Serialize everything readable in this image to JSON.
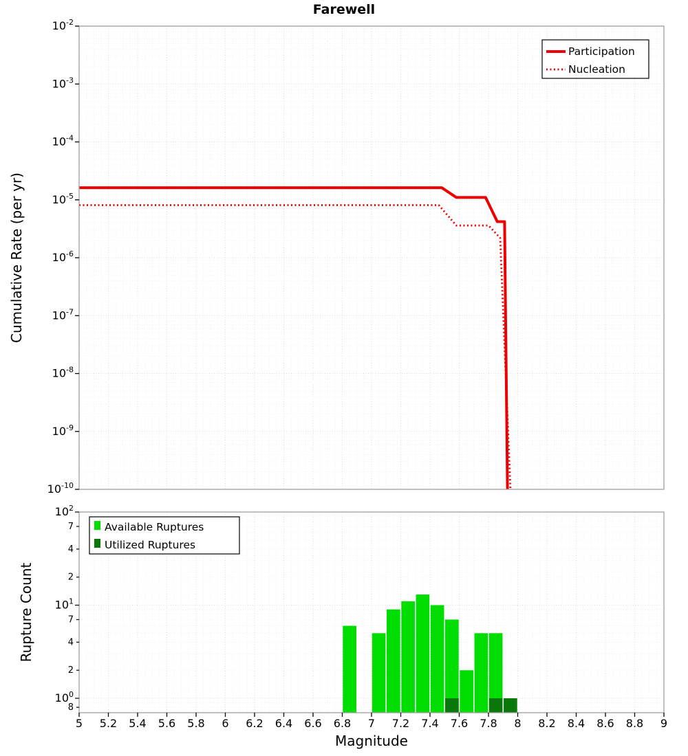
{
  "title": "Farewell",
  "axes": {
    "x_label": "Magnitude",
    "top_y_label": "Cumulative Rate (per yr)",
    "bottom_y_label": "Rupture Count"
  },
  "colors": {
    "red": "#ee0000",
    "green": "#00dd00",
    "dark_green": "#0a770a",
    "grid_major": "#d9d9d9",
    "grid_minor": "#f0f0f0",
    "frame": "#9e9e9e",
    "tick": "#000000"
  },
  "chart_data": [
    {
      "type": "line",
      "title": "Farewell",
      "ylabel": "Cumulative Rate (per yr)",
      "x_range": [
        5,
        9
      ],
      "y_log_range": [
        -10,
        -2
      ],
      "y_ticks_exp": [
        "-2",
        "-3",
        "-4",
        "-5",
        "-6",
        "-7",
        "-8",
        "-9",
        "-10"
      ],
      "legend_position": "top-right",
      "series": [
        {
          "name": "Participation",
          "color": "#ee0000",
          "dash": "solid",
          "width": 4,
          "points": [
            [
              5.0,
              1.62e-05
            ],
            [
              7.48,
              1.62e-05
            ],
            [
              7.58,
              1.1e-05
            ],
            [
              7.78,
              1.1e-05
            ],
            [
              7.86,
              4.2e-06
            ],
            [
              7.91,
              4.2e-06
            ],
            [
              7.93,
              1e-10
            ]
          ]
        },
        {
          "name": "Nucleation",
          "color": "#ee0000",
          "dash": "dotted",
          "width": 2.8,
          "points": [
            [
              5.0,
              8.1e-06
            ],
            [
              7.46,
              8.1e-06
            ],
            [
              7.58,
              3.6e-06
            ],
            [
              7.8,
              3.6e-06
            ],
            [
              7.88,
              2.2e-06
            ],
            [
              7.95,
              1e-10
            ]
          ]
        }
      ]
    },
    {
      "type": "bar",
      "ylabel": "Rupture Count",
      "x_range": [
        5,
        9
      ],
      "y_range": [
        0.7,
        100
      ],
      "bar_width": 0.1,
      "legend_position": "top-left",
      "x_ticks": [
        5,
        5.2,
        5.4,
        5.6,
        5.8,
        6,
        6.2,
        6.4,
        6.6,
        6.8,
        7,
        7.2,
        7.4,
        7.6,
        7.8,
        8,
        8.2,
        8.4,
        8.6,
        8.8,
        9
      ],
      "x_tick_labels": [
        "5",
        "5.2",
        "5.4",
        "5.6",
        "5.8",
        "6",
        "6.2",
        "6.4",
        "6.6",
        "6.8",
        "7",
        "7.2",
        "7.4",
        "7.6",
        "7.8",
        "8",
        "8.2",
        "8.4",
        "8.6",
        "8.8",
        "9"
      ],
      "y_ticks": [
        {
          "v": 100,
          "sup": true,
          "exp": "2"
        },
        {
          "v": 70,
          "label": "7"
        },
        {
          "v": 40,
          "label": "4"
        },
        {
          "v": 20,
          "label": "2"
        },
        {
          "v": 10,
          "sup": true,
          "exp": "1"
        },
        {
          "v": 7,
          "label": "7"
        },
        {
          "v": 4,
          "label": "4"
        },
        {
          "v": 2,
          "label": "2"
        },
        {
          "v": 1,
          "sup": true,
          "exp": "0"
        },
        {
          "v": 0.8,
          "label": "8"
        }
      ],
      "series": [
        {
          "name": "Available Ruptures",
          "color": "#00dd00",
          "x": [
            6.85,
            7.05,
            7.15,
            7.25,
            7.35,
            7.45,
            7.55,
            7.65,
            7.75,
            7.85
          ],
          "counts": [
            6,
            5,
            9,
            11,
            13,
            10,
            7,
            2,
            5,
            5
          ]
        },
        {
          "name": "Utilized Ruptures",
          "color": "#0a770a",
          "x": [
            7.55,
            7.85,
            7.95
          ],
          "counts": [
            1,
            1,
            1
          ]
        }
      ]
    }
  ]
}
